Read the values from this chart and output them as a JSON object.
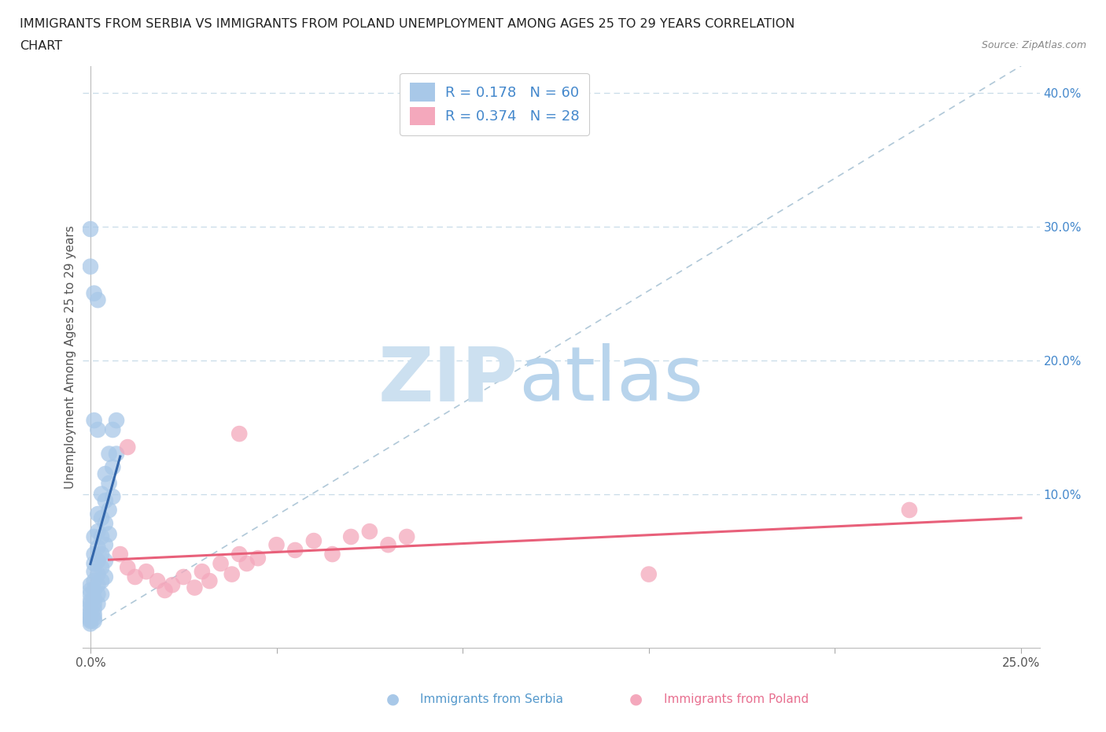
{
  "title_line1": "IMMIGRANTS FROM SERBIA VS IMMIGRANTS FROM POLAND UNEMPLOYMENT AMONG AGES 25 TO 29 YEARS CORRELATION",
  "title_line2": "CHART",
  "source_text": "Source: ZipAtlas.com",
  "ylabel": "Unemployment Among Ages 25 to 29 years",
  "xlabel_serbia": "Immigrants from Serbia",
  "xlabel_poland": "Immigrants from Poland",
  "serbia_R": 0.178,
  "serbia_N": 60,
  "poland_R": 0.374,
  "poland_N": 28,
  "serbia_color": "#a8c8e8",
  "poland_color": "#f4a8bc",
  "serbia_line_color": "#3366aa",
  "poland_line_color": "#e8607a",
  "serbia_scatter": [
    [
      0.0,
      0.032
    ],
    [
      0.0,
      0.028
    ],
    [
      0.0,
      0.025
    ],
    [
      0.0,
      0.02
    ],
    [
      0.0,
      0.018
    ],
    [
      0.0,
      0.015
    ],
    [
      0.0,
      0.012
    ],
    [
      0.0,
      0.01
    ],
    [
      0.0,
      0.008
    ],
    [
      0.0,
      0.006
    ],
    [
      0.0,
      0.005
    ],
    [
      0.0,
      0.003
    ],
    [
      0.001,
      0.068
    ],
    [
      0.001,
      0.055
    ],
    [
      0.001,
      0.048
    ],
    [
      0.001,
      0.042
    ],
    [
      0.001,
      0.035
    ],
    [
      0.001,
      0.028
    ],
    [
      0.001,
      0.022
    ],
    [
      0.001,
      0.018
    ],
    [
      0.001,
      0.014
    ],
    [
      0.001,
      0.01
    ],
    [
      0.001,
      0.007
    ],
    [
      0.001,
      0.005
    ],
    [
      0.002,
      0.085
    ],
    [
      0.002,
      0.072
    ],
    [
      0.002,
      0.06
    ],
    [
      0.002,
      0.05
    ],
    [
      0.002,
      0.04
    ],
    [
      0.002,
      0.032
    ],
    [
      0.002,
      0.025
    ],
    [
      0.002,
      0.018
    ],
    [
      0.003,
      0.1
    ],
    [
      0.003,
      0.082
    ],
    [
      0.003,
      0.068
    ],
    [
      0.003,
      0.055
    ],
    [
      0.003,
      0.045
    ],
    [
      0.003,
      0.035
    ],
    [
      0.003,
      0.025
    ],
    [
      0.004,
      0.115
    ],
    [
      0.004,
      0.095
    ],
    [
      0.004,
      0.078
    ],
    [
      0.004,
      0.062
    ],
    [
      0.004,
      0.05
    ],
    [
      0.004,
      0.038
    ],
    [
      0.005,
      0.13
    ],
    [
      0.005,
      0.108
    ],
    [
      0.005,
      0.088
    ],
    [
      0.005,
      0.07
    ],
    [
      0.006,
      0.148
    ],
    [
      0.006,
      0.12
    ],
    [
      0.006,
      0.098
    ],
    [
      0.007,
      0.155
    ],
    [
      0.007,
      0.13
    ],
    [
      0.0,
      0.27
    ],
    [
      0.0,
      0.298
    ],
    [
      0.001,
      0.25
    ],
    [
      0.002,
      0.245
    ],
    [
      0.001,
      0.155
    ],
    [
      0.002,
      0.148
    ]
  ],
  "poland_scatter": [
    [
      0.008,
      0.055
    ],
    [
      0.01,
      0.045
    ],
    [
      0.012,
      0.038
    ],
    [
      0.015,
      0.042
    ],
    [
      0.018,
      0.035
    ],
    [
      0.02,
      0.028
    ],
    [
      0.022,
      0.032
    ],
    [
      0.025,
      0.038
    ],
    [
      0.028,
      0.03
    ],
    [
      0.03,
      0.042
    ],
    [
      0.032,
      0.035
    ],
    [
      0.035,
      0.048
    ],
    [
      0.038,
      0.04
    ],
    [
      0.04,
      0.055
    ],
    [
      0.042,
      0.048
    ],
    [
      0.045,
      0.052
    ],
    [
      0.05,
      0.062
    ],
    [
      0.055,
      0.058
    ],
    [
      0.06,
      0.065
    ],
    [
      0.065,
      0.055
    ],
    [
      0.07,
      0.068
    ],
    [
      0.075,
      0.072
    ],
    [
      0.08,
      0.062
    ],
    [
      0.085,
      0.068
    ],
    [
      0.01,
      0.135
    ],
    [
      0.04,
      0.145
    ],
    [
      0.15,
      0.04
    ],
    [
      0.22,
      0.088
    ]
  ],
  "xlim": [
    -0.002,
    0.255
  ],
  "ylim": [
    -0.015,
    0.42
  ],
  "x_ticks": [
    0.0,
    0.05,
    0.1,
    0.15,
    0.2,
    0.25
  ],
  "y_ticks_right": [
    0.1,
    0.2,
    0.3,
    0.4
  ],
  "y_tick_labels_right": [
    "10.0%",
    "20.0%",
    "30.0%",
    "40.0%"
  ],
  "grid_color": "#c8dce8",
  "background_color": "#ffffff",
  "dashed_line_color": "#b0c8d8",
  "title_color": "#222222",
  "label_color": "#555555",
  "right_axis_color": "#4488cc"
}
